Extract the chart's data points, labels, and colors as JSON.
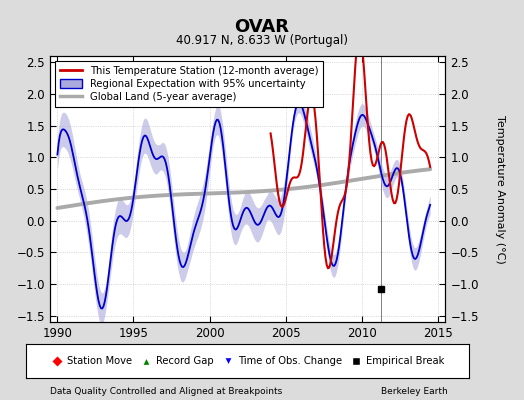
{
  "title": "OVAR",
  "subtitle": "40.917 N, 8.633 W (Portugal)",
  "ylabel": "Temperature Anomaly (°C)",
  "xlabel_left": "Data Quality Controlled and Aligned at Breakpoints",
  "xlabel_right": "Berkeley Earth",
  "xlim": [
    1989.5,
    2015.5
  ],
  "ylim": [
    -1.6,
    2.6
  ],
  "yticks": [
    -1.5,
    -1.0,
    -0.5,
    0,
    0.5,
    1.0,
    1.5,
    2.0,
    2.5
  ],
  "xticks": [
    1990,
    1995,
    2000,
    2005,
    2010,
    2015
  ],
  "bg_color": "#dcdcdc",
  "plot_bg_color": "#ffffff",
  "grid_color": "#bbbbbb",
  "station_line_color": "#cc0000",
  "regional_line_color": "#0000cc",
  "regional_fill_color": "#aaaadd",
  "global_line_color": "#aaaaaa",
  "empirical_break_x": 2011.3,
  "empirical_break_y": -1.08,
  "legend1_entries": [
    "This Temperature Station (12-month average)",
    "Regional Expectation with 95% uncertainty",
    "Global Land (5-year average)"
  ],
  "legend2_entries": [
    "Station Move",
    "Record Gap",
    "Time of Obs. Change",
    "Empirical Break"
  ]
}
